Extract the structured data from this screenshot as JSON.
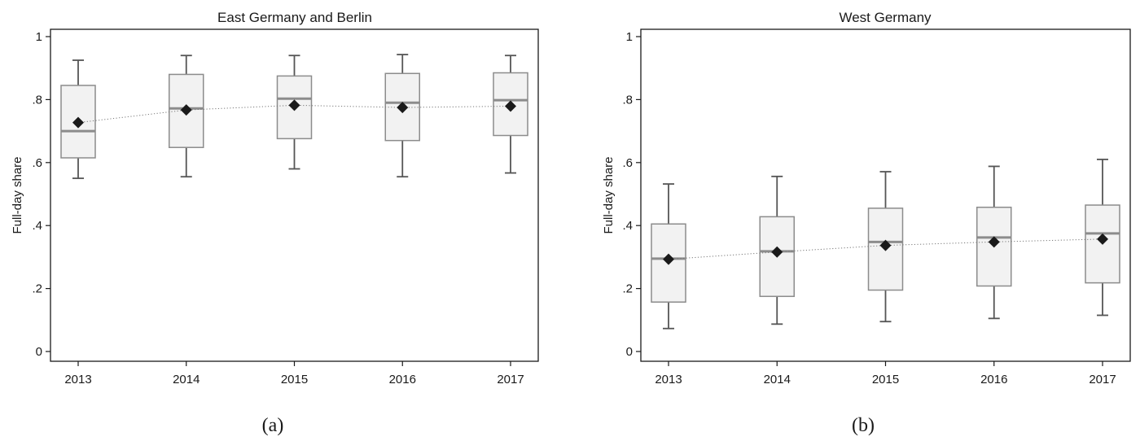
{
  "chart_data": [
    {
      "type": "box",
      "title": "East Germany and Berlin",
      "ylabel": "Full-day share",
      "xlabel": "",
      "caption": "(a)",
      "ylim": [
        0,
        1
      ],
      "yticks": [
        "0",
        ".2",
        ".4",
        ".6",
        ".8",
        "1"
      ],
      "ytick_values": [
        0,
        0.2,
        0.4,
        0.6,
        0.8,
        1
      ],
      "categories": [
        "2013",
        "2014",
        "2015",
        "2016",
        "2017"
      ],
      "boxes": [
        {
          "whisker_low": 0.55,
          "q1": 0.615,
          "median": 0.7,
          "q3": 0.845,
          "whisker_high": 0.925,
          "mean": 0.727
        },
        {
          "whisker_low": 0.555,
          "q1": 0.648,
          "median": 0.772,
          "q3": 0.88,
          "whisker_high": 0.94,
          "mean": 0.767
        },
        {
          "whisker_low": 0.58,
          "q1": 0.676,
          "median": 0.803,
          "q3": 0.875,
          "whisker_high": 0.94,
          "mean": 0.782
        },
        {
          "whisker_low": 0.555,
          "q1": 0.67,
          "median": 0.79,
          "q3": 0.883,
          "whisker_high": 0.943,
          "mean": 0.775
        },
        {
          "whisker_low": 0.567,
          "q1": 0.686,
          "median": 0.798,
          "q3": 0.885,
          "whisker_high": 0.94,
          "mean": 0.779
        }
      ],
      "fit_line": [
        0.727,
        0.767,
        0.782,
        0.775,
        0.779
      ],
      "colors": {
        "box_fill": "#f2f2f2",
        "box_stroke": "#8c8c8c",
        "median": "#8c8c8c",
        "whisker": "#555555",
        "mean_marker": "#1a1a1a",
        "fit_line": "#777777"
      }
    },
    {
      "type": "box",
      "title": "West Germany",
      "ylabel": "Full-day share",
      "xlabel": "",
      "caption": "(b)",
      "ylim": [
        0,
        1
      ],
      "yticks": [
        "0",
        ".2",
        ".4",
        ".6",
        ".8",
        "1"
      ],
      "ytick_values": [
        0,
        0.2,
        0.4,
        0.6,
        0.8,
        1
      ],
      "categories": [
        "2013",
        "2014",
        "2015",
        "2016",
        "2017"
      ],
      "boxes": [
        {
          "whisker_low": 0.073,
          "q1": 0.157,
          "median": 0.295,
          "q3": 0.405,
          "whisker_high": 0.532,
          "mean": 0.293
        },
        {
          "whisker_low": 0.087,
          "q1": 0.175,
          "median": 0.318,
          "q3": 0.428,
          "whisker_high": 0.556,
          "mean": 0.316
        },
        {
          "whisker_low": 0.095,
          "q1": 0.195,
          "median": 0.348,
          "q3": 0.455,
          "whisker_high": 0.571,
          "mean": 0.337
        },
        {
          "whisker_low": 0.105,
          "q1": 0.208,
          "median": 0.362,
          "q3": 0.458,
          "whisker_high": 0.588,
          "mean": 0.348
        },
        {
          "whisker_low": 0.115,
          "q1": 0.218,
          "median": 0.375,
          "q3": 0.465,
          "whisker_high": 0.61,
          "mean": 0.357
        }
      ],
      "fit_line": [
        0.293,
        0.316,
        0.337,
        0.348,
        0.357
      ],
      "colors": {
        "box_fill": "#f2f2f2",
        "box_stroke": "#8c8c8c",
        "median": "#8c8c8c",
        "whisker": "#555555",
        "mean_marker": "#1a1a1a",
        "fit_line": "#777777"
      }
    }
  ]
}
